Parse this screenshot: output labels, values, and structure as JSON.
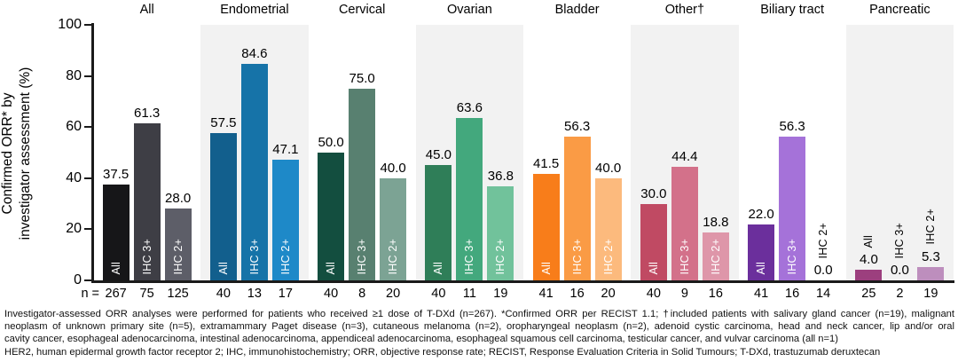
{
  "chart_data": {
    "type": "bar",
    "ylabel_line1": "Confirmed ORR* by",
    "ylabel_line2": "investigator assessment (%)",
    "ylim": [
      0,
      100
    ],
    "yticks": [
      0,
      20,
      40,
      60,
      80,
      100
    ],
    "grid": false,
    "legend_position": "none",
    "bar_labels": [
      "All",
      "IHC 3+",
      "IHC 2+"
    ],
    "n_prefix": "n =",
    "shaded_band_color": "#f2f2f2",
    "groups": [
      {
        "label": "All",
        "shaded": false,
        "colors": [
          "#161618",
          "#3e3e45",
          "#5d5e68"
        ],
        "values": [
          "37.5",
          "61.3",
          "28.0"
        ],
        "n": [
          "267",
          "75",
          "125"
        ]
      },
      {
        "label": "Endometrial",
        "shaded": true,
        "colors": [
          "#125f8d",
          "#1673a8",
          "#1e89c8"
        ],
        "values": [
          "57.5",
          "84.6",
          "47.1"
        ],
        "n": [
          "40",
          "13",
          "17"
        ]
      },
      {
        "label": "Cervical",
        "shaded": false,
        "colors": [
          "#134e3f",
          "#588070",
          "#7ca394"
        ],
        "values": [
          "50.0",
          "75.0",
          "40.0"
        ],
        "n": [
          "40",
          "8",
          "20"
        ]
      },
      {
        "label": "Ovarian",
        "shaded": true,
        "colors": [
          "#2f7e58",
          "#43a87d",
          "#71c29b"
        ],
        "values": [
          "45.0",
          "63.6",
          "36.8"
        ],
        "n": [
          "40",
          "11",
          "19"
        ]
      },
      {
        "label": "Bladder",
        "shaded": false,
        "colors": [
          "#f87d1a",
          "#fa9b45",
          "#fcba7d"
        ],
        "values": [
          "41.5",
          "56.3",
          "40.0"
        ],
        "n": [
          "41",
          "16",
          "20"
        ]
      },
      {
        "label": "Other†",
        "shaded": true,
        "colors": [
          "#c04a63",
          "#d3718a",
          "#de96a9"
        ],
        "values": [
          "30.0",
          "44.4",
          "18.8"
        ],
        "n": [
          "40",
          "9",
          "16"
        ]
      },
      {
        "label": "Biliary tract",
        "shaded": false,
        "colors": [
          "#6b2f9c",
          "#a572d9",
          "#c9a4e8"
        ],
        "values": [
          "22.0",
          "56.3",
          "0.0"
        ],
        "n": [
          "41",
          "16",
          "14"
        ]
      },
      {
        "label": "Pancreatic",
        "shaded": true,
        "colors": [
          "#9c3f7e",
          "#b468a4",
          "#bd8ebd"
        ],
        "values": [
          "4.0",
          "0.0",
          "5.3"
        ],
        "n": [
          "25",
          "2",
          "19"
        ]
      }
    ]
  },
  "footnotes": [
    "Investigator-assessed ORR analyses were performed for patients who received ≥1 dose of T-DXd (n=267). *Confirmed ORR per RECIST 1.1; †included patients with salivary gland cancer (n=19), malignant",
    "neoplasm of unknown primary site (n=5), extramammary Paget disease (n=3), cutaneous melanoma (n=2), oropharyngeal neoplasm (n=2), adenoid cystic carcinoma, head and neck cancer, lip and/or oral",
    "cavity cancer, esophageal adenocarcinoma, intestinal adenocarcinoma, appendiceal adenocarcinoma, esophageal squamous cell carcinoma, testicular cancer, and vulvar carcinoma (all n=1)",
    "HER2, human epidermal growth factor receptor 2; IHC, immunohistochemistry; ORR, objective response rate; RECIST, Response Evaluation Criteria in Solid Tumours; T-DXd, trastuzumab deruxtecan"
  ]
}
